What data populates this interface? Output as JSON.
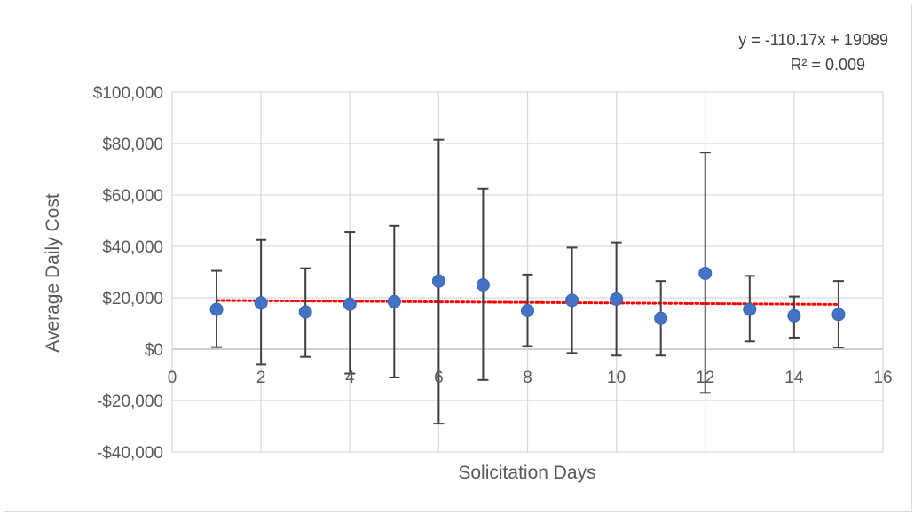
{
  "chart_data": {
    "type": "scatter",
    "xlabel": "Solicitation Days",
    "ylabel": "Average  Daily Cost",
    "xlim": [
      0,
      16
    ],
    "ylim": [
      -40000,
      100000
    ],
    "x_ticks": [
      0,
      2,
      4,
      6,
      8,
      10,
      12,
      14,
      16
    ],
    "x_tick_labels": [
      "0",
      "2",
      "4",
      "6",
      "8",
      "10",
      "12",
      "14",
      "16"
    ],
    "y_ticks": [
      -40000,
      -20000,
      0,
      20000,
      40000,
      60000,
      80000,
      100000
    ],
    "y_tick_labels": [
      "-$40,000",
      "-$20,000",
      "$0",
      "$20,000",
      "$40,000",
      "$60,000",
      "$80,000",
      "$100,000"
    ],
    "grid": true,
    "colors": {
      "points": "#4472c4",
      "trendline": "#ff0000",
      "error_bars": "#404040",
      "grid": "#d9d9d9"
    },
    "points": [
      {
        "x": 1,
        "y": 15500,
        "low": 800,
        "high": 30500
      },
      {
        "x": 2,
        "y": 18000,
        "low": -6000,
        "high": 42500
      },
      {
        "x": 3,
        "y": 14500,
        "low": -3000,
        "high": 31500
      },
      {
        "x": 4,
        "y": 17500,
        "low": -9500,
        "high": 45500
      },
      {
        "x": 5,
        "y": 18500,
        "low": -11000,
        "high": 48000
      },
      {
        "x": 6,
        "y": 26500,
        "low": -29000,
        "high": 81500
      },
      {
        "x": 7,
        "y": 25000,
        "low": -12000,
        "high": 62500
      },
      {
        "x": 8,
        "y": 15000,
        "low": 1200,
        "high": 29000
      },
      {
        "x": 9,
        "y": 19000,
        "low": -1500,
        "high": 39500
      },
      {
        "x": 10,
        "y": 19500,
        "low": -2500,
        "high": 41500
      },
      {
        "x": 11,
        "y": 12000,
        "low": -2500,
        "high": 26500
      },
      {
        "x": 12,
        "y": 29500,
        "low": -17000,
        "high": 76500
      },
      {
        "x": 13,
        "y": 15500,
        "low": 3000,
        "high": 28500
      },
      {
        "x": 14,
        "y": 13000,
        "low": 4500,
        "high": 20500
      },
      {
        "x": 15,
        "y": 13500,
        "low": 700,
        "high": 26500
      }
    ],
    "trendline": {
      "type": "linear",
      "slope": -110.17,
      "intercept": 19089,
      "x_range": [
        1,
        15
      ],
      "equation_label": "y = -110.17x + 19089",
      "r2_label": "R² = 0.009"
    }
  }
}
